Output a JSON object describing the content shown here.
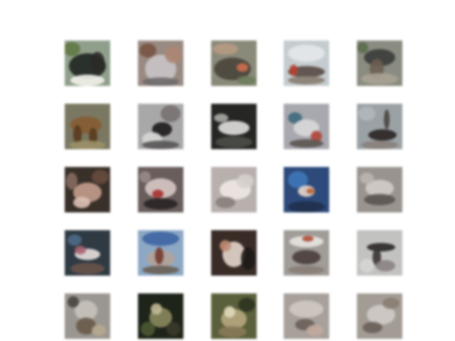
{
  "figure": {
    "rows": 5,
    "columns": 5,
    "background": "#ffffff",
    "samples": [
      {
        "name": "sample-r1-c1",
        "bg": "#8fa08a",
        "blobs": [
          [
            "#1e2420",
            32,
            36,
            26,
            18
          ],
          [
            "#f2f2ea",
            32,
            56,
            24,
            8
          ],
          [
            "#5e7a3e",
            10,
            12,
            12,
            10
          ],
          [
            "#2c2a28",
            46,
            30,
            10,
            14
          ]
        ]
      },
      {
        "name": "sample-r1-c2",
        "bg": "#9a8a80",
        "blobs": [
          [
            "#c9c3c6",
            32,
            40,
            22,
            20
          ],
          [
            "#7a5240",
            14,
            14,
            12,
            10
          ],
          [
            "#b08470",
            50,
            20,
            12,
            12
          ],
          [
            "#6f6a6c",
            32,
            58,
            26,
            6
          ]
        ]
      },
      {
        "name": "sample-r1-c3",
        "bg": "#8a8a78",
        "blobs": [
          [
            "#4a4438",
            30,
            40,
            26,
            16
          ],
          [
            "#b89a80",
            20,
            12,
            18,
            8
          ],
          [
            "#d86a4a",
            44,
            38,
            8,
            6
          ],
          [
            "#6c7e5a",
            50,
            56,
            14,
            6
          ]
        ]
      },
      {
        "name": "sample-r1-c4",
        "bg": "#c4ccd0",
        "blobs": [
          [
            "#5a4a44",
            32,
            44,
            26,
            8
          ],
          [
            "#e4e8ea",
            32,
            18,
            26,
            12
          ],
          [
            "#c04030",
            14,
            42,
            6,
            8
          ],
          [
            "#8a7e70",
            32,
            56,
            26,
            6
          ]
        ]
      },
      {
        "name": "sample-r1-c5",
        "bg": "#8a8c80",
        "blobs": [
          [
            "#3a3c3a",
            32,
            24,
            22,
            12
          ],
          [
            "#6e5e50",
            28,
            40,
            10,
            14
          ],
          [
            "#a8a290",
            32,
            54,
            26,
            8
          ],
          [
            "#5a6e4a",
            8,
            10,
            8,
            8
          ]
        ]
      },
      {
        "name": "sample-r2-c1",
        "bg": "#7a7860",
        "blobs": [
          [
            "#8a5a2c",
            30,
            30,
            22,
            12
          ],
          [
            "#5c3a1a",
            18,
            44,
            6,
            14
          ],
          [
            "#5c3a1a",
            40,
            46,
            6,
            12
          ],
          [
            "#9c9064",
            32,
            58,
            26,
            6
          ]
        ]
      },
      {
        "name": "sample-r2-c2",
        "bg": "#a8a8a8",
        "blobs": [
          [
            "#1c1a1a",
            34,
            36,
            14,
            10
          ],
          [
            "#d6d6d4",
            20,
            50,
            14,
            10
          ],
          [
            "#787070",
            46,
            14,
            14,
            12
          ],
          [
            "#585454",
            32,
            58,
            26,
            6
          ]
        ]
      },
      {
        "name": "sample-r2-c3",
        "bg": "#262624",
        "blobs": [
          [
            "#e2e0de",
            32,
            34,
            22,
            10
          ],
          [
            "#4e4e48",
            32,
            54,
            26,
            8
          ],
          [
            "#aaa8a4",
            14,
            20,
            10,
            6
          ]
        ]
      },
      {
        "name": "sample-r2-c4",
        "bg": "#a8a8b0",
        "blobs": [
          [
            "#3a6a80",
            16,
            20,
            10,
            8
          ],
          [
            "#d8d8dc",
            32,
            34,
            18,
            12
          ],
          [
            "#b84438",
            46,
            46,
            8,
            8
          ],
          [
            "#5c5450",
            32,
            56,
            24,
            6
          ]
        ]
      },
      {
        "name": "sample-r2-c5",
        "bg": "#9aa2a6",
        "blobs": [
          [
            "#2a2422",
            36,
            44,
            20,
            8
          ],
          [
            "#4a4440",
            42,
            22,
            4,
            14
          ],
          [
            "#b0b8bc",
            14,
            14,
            12,
            10
          ],
          [
            "#8a807a",
            32,
            58,
            26,
            6
          ]
        ]
      },
      {
        "name": "sample-r3-c1",
        "bg": "#3a3028",
        "blobs": [
          [
            "#c89c88",
            32,
            36,
            20,
            14
          ],
          [
            "#e0c0b4",
            24,
            50,
            12,
            8
          ],
          [
            "#6a4a3c",
            50,
            14,
            12,
            10
          ],
          [
            "#8a6c5c",
            10,
            20,
            8,
            12
          ]
        ]
      },
      {
        "name": "sample-r3-c2",
        "bg": "#6a5e5c",
        "blobs": [
          [
            "#d8c8c4",
            32,
            30,
            22,
            14
          ],
          [
            "#b02c2c",
            28,
            38,
            8,
            6
          ],
          [
            "#2a2424",
            32,
            52,
            24,
            8
          ],
          [
            "#9a8a86",
            10,
            14,
            8,
            8
          ]
        ]
      },
      {
        "name": "sample-r3-c3",
        "bg": "#b8b0ac",
        "blobs": [
          [
            "#efe8e4",
            34,
            32,
            22,
            14
          ],
          [
            "#8a807c",
            20,
            50,
            14,
            8
          ],
          [
            "#d8d0cc",
            48,
            20,
            12,
            10
          ]
        ]
      },
      {
        "name": "sample-r3-c4",
        "bg": "#2a4a80",
        "blobs": [
          [
            "#3a78c0",
            20,
            18,
            14,
            12
          ],
          [
            "#e8d6c8",
            32,
            34,
            12,
            8
          ],
          [
            "#c06030",
            38,
            34,
            6,
            4
          ],
          [
            "#1e3050",
            32,
            56,
            26,
            8
          ]
        ]
      },
      {
        "name": "sample-r3-c5",
        "bg": "#9a948e",
        "blobs": [
          [
            "#d2ccc6",
            32,
            30,
            20,
            12
          ],
          [
            "#5c5450",
            32,
            46,
            22,
            8
          ],
          [
            "#bcb4ae",
            14,
            16,
            10,
            8
          ]
        ]
      },
      {
        "name": "sample-r4-c1",
        "bg": "#2e3a44",
        "blobs": [
          [
            "#e8e0e0",
            32,
            34,
            18,
            8
          ],
          [
            "#b06070",
            22,
            28,
            8,
            6
          ],
          [
            "#4a6a8a",
            14,
            14,
            10,
            8
          ],
          [
            "#6a5448",
            32,
            54,
            24,
            8
          ]
        ]
      },
      {
        "name": "sample-r4-c2",
        "bg": "#8aa8c8",
        "blobs": [
          [
            "#3a64a8",
            32,
            12,
            26,
            10
          ],
          [
            "#b4a298",
            32,
            40,
            20,
            12
          ],
          [
            "#7a3a2c",
            30,
            36,
            6,
            12
          ],
          [
            "#6c5e52",
            32,
            56,
            26,
            6
          ]
        ]
      },
      {
        "name": "sample-r4-c3",
        "bg": "#3a2c26",
        "blobs": [
          [
            "#e6d6cc",
            32,
            34,
            16,
            18
          ],
          [
            "#c48a70",
            20,
            22,
            8,
            8
          ],
          [
            "#1e1a18",
            52,
            40,
            10,
            16
          ]
        ]
      },
      {
        "name": "sample-r4-c4",
        "bg": "#a09c98",
        "blobs": [
          [
            "#e8e4e0",
            32,
            16,
            24,
            8
          ],
          [
            "#4a3e38",
            32,
            38,
            20,
            10
          ],
          [
            "#b84a30",
            34,
            12,
            8,
            4
          ],
          [
            "#8a7e76",
            32,
            56,
            26,
            6
          ]
        ]
      },
      {
        "name": "sample-r4-c5",
        "bg": "#c2c2c0",
        "blobs": [
          [
            "#2a2626",
            34,
            24,
            20,
            6
          ],
          [
            "#3a3432",
            28,
            38,
            6,
            12
          ],
          [
            "#8a8482",
            40,
            50,
            14,
            8
          ],
          [
            "#d8d6d4",
            14,
            50,
            10,
            10
          ]
        ]
      },
      {
        "name": "sample-r5-c1",
        "bg": "#9a9690",
        "blobs": [
          [
            "#c8c2ba",
            30,
            24,
            16,
            14
          ],
          [
            "#6a5a48",
            30,
            46,
            14,
            12
          ],
          [
            "#b8a88e",
            48,
            52,
            10,
            8
          ],
          [
            "#4a4440",
            12,
            12,
            8,
            8
          ]
        ]
      },
      {
        "name": "sample-r5-c2",
        "bg": "#1e2418",
        "blobs": [
          [
            "#8a8a5a",
            32,
            34,
            16,
            14
          ],
          [
            "#c0b890",
            26,
            22,
            8,
            8
          ],
          [
            "#4a5a30",
            14,
            50,
            10,
            10
          ],
          [
            "#3a3a28",
            50,
            50,
            10,
            10
          ]
        ]
      },
      {
        "name": "sample-r5-c3",
        "bg": "#5a6038",
        "blobs": [
          [
            "#b8a87c",
            32,
            36,
            18,
            14
          ],
          [
            "#e0d8b8",
            26,
            26,
            8,
            8
          ],
          [
            "#2a3420",
            50,
            16,
            12,
            10
          ],
          [
            "#8a7a54",
            30,
            54,
            20,
            8
          ]
        ]
      },
      {
        "name": "sample-r5-c4",
        "bg": "#a8a09a",
        "blobs": [
          [
            "#cfc8c2",
            32,
            22,
            24,
            12
          ],
          [
            "#6a5e58",
            30,
            44,
            14,
            8
          ],
          [
            "#c4a89a",
            44,
            52,
            12,
            8
          ]
        ]
      },
      {
        "name": "sample-r5-c5",
        "bg": "#a49c94",
        "blobs": [
          [
            "#d2ccc6",
            34,
            30,
            20,
            14
          ],
          [
            "#6a6058",
            22,
            48,
            14,
            8
          ],
          [
            "#8a7e72",
            48,
            14,
            12,
            8
          ]
        ]
      }
    ]
  }
}
